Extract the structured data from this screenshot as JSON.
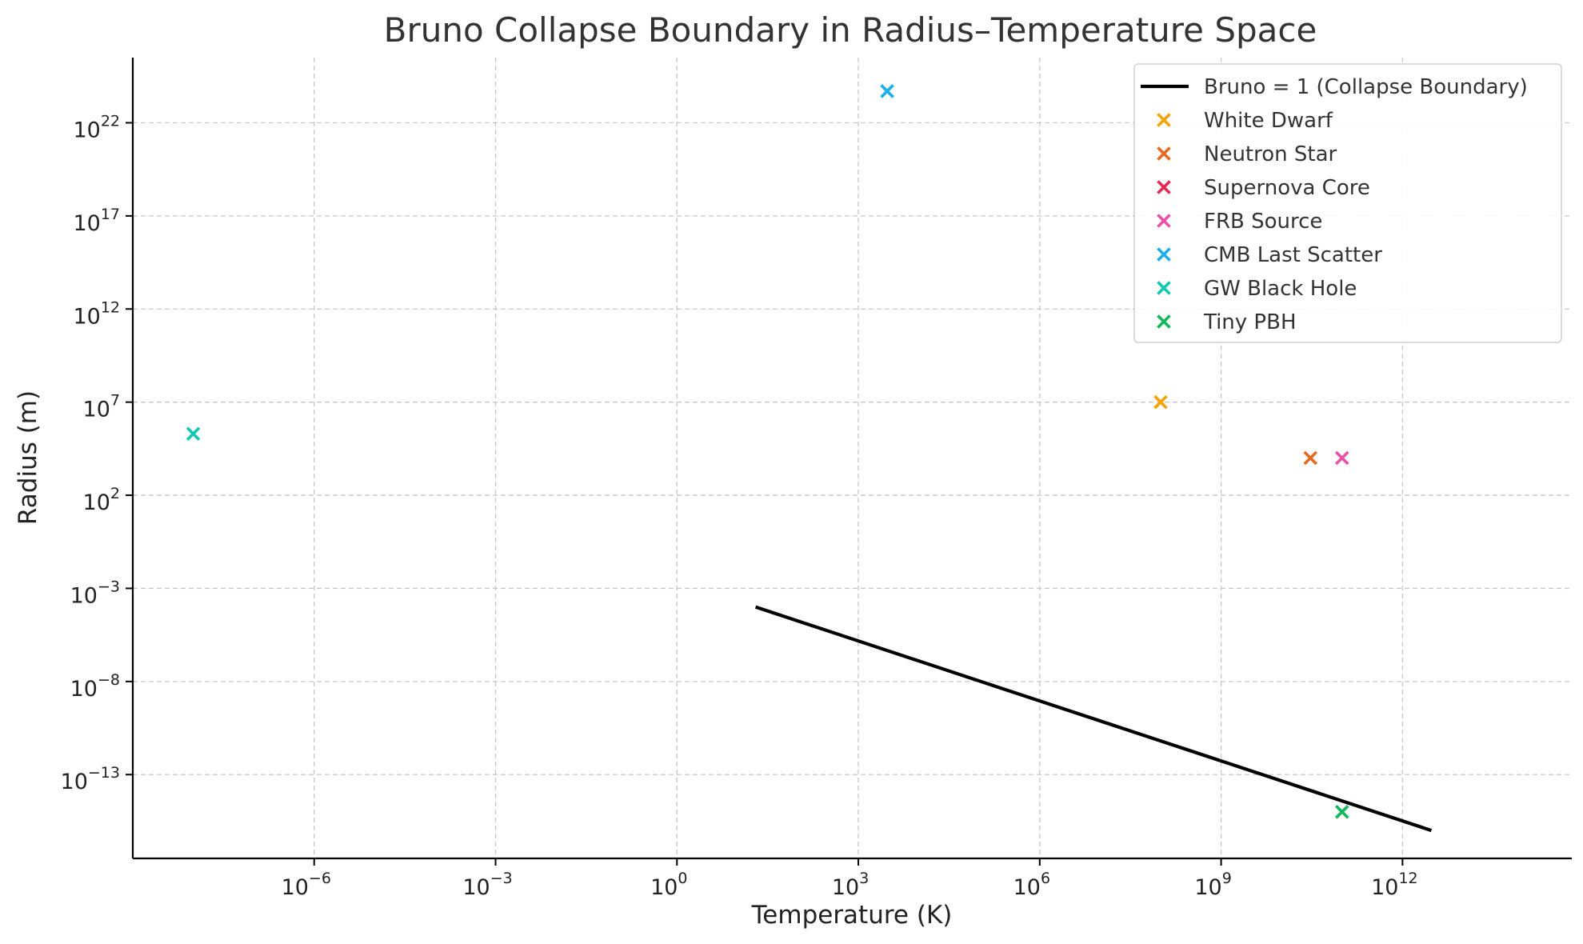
{
  "chart_data": {
    "type": "scatter",
    "title": "Bruno Collapse Boundary in Radius–Temperature Space",
    "xlabel": "Temperature (K)",
    "ylabel": "Radius (m)",
    "x_scale": "log",
    "y_scale": "log",
    "xlim_exp": [
      -9,
      14.8
    ],
    "ylim_exp": [
      -17.5,
      25.5
    ],
    "x_tick_exps": [
      -6,
      -3,
      0,
      3,
      6,
      9,
      12
    ],
    "y_tick_exps": [
      -13,
      -8,
      -3,
      2,
      7,
      12,
      17,
      22
    ],
    "x_tick_labels": [
      "10",
      "10",
      "10",
      "10",
      "10",
      "10",
      "10"
    ],
    "x_tick_sups": [
      "−6",
      "−3",
      "0",
      "3",
      "6",
      "9",
      "12"
    ],
    "y_tick_labels": [
      "10",
      "10",
      "10",
      "10",
      "10",
      "10",
      "10",
      "10"
    ],
    "y_tick_sups": [
      "−13",
      "−8",
      "−3",
      "2",
      "7",
      "12",
      "17",
      "22"
    ],
    "grid": true,
    "legend_position": "top-right",
    "line": {
      "name": "Bruno = 1 (Collapse Boundary)",
      "color": "#000000",
      "points": [
        [
          20,
          0.0001
        ],
        [
          3000000000000,
          1e-16
        ]
      ]
    },
    "series": [
      {
        "name": "White Dwarf",
        "color": "#f4a300",
        "points": [
          [
            100000000,
            10000000
          ]
        ]
      },
      {
        "name": "Neutron Star",
        "color": "#e8691e",
        "points": [
          [
            30000000000,
            10000
          ]
        ]
      },
      {
        "name": "Supernova Core",
        "color": "#e8274e",
        "points": []
      },
      {
        "name": "FRB Source",
        "color": "#ee4fa8",
        "points": [
          [
            100000000000,
            10000
          ]
        ]
      },
      {
        "name": "CMB Last Scatter",
        "color": "#1ab0ef",
        "points": [
          [
            3000,
            5e+23
          ]
        ]
      },
      {
        "name": "GW Black Hole",
        "color": "#11c8b2",
        "points": [
          [
            1e-08,
            200000
          ]
        ]
      },
      {
        "name": "Tiny PBH",
        "color": "#10b85a",
        "points": [
          [
            100000000000,
            1e-15
          ]
        ]
      }
    ]
  }
}
